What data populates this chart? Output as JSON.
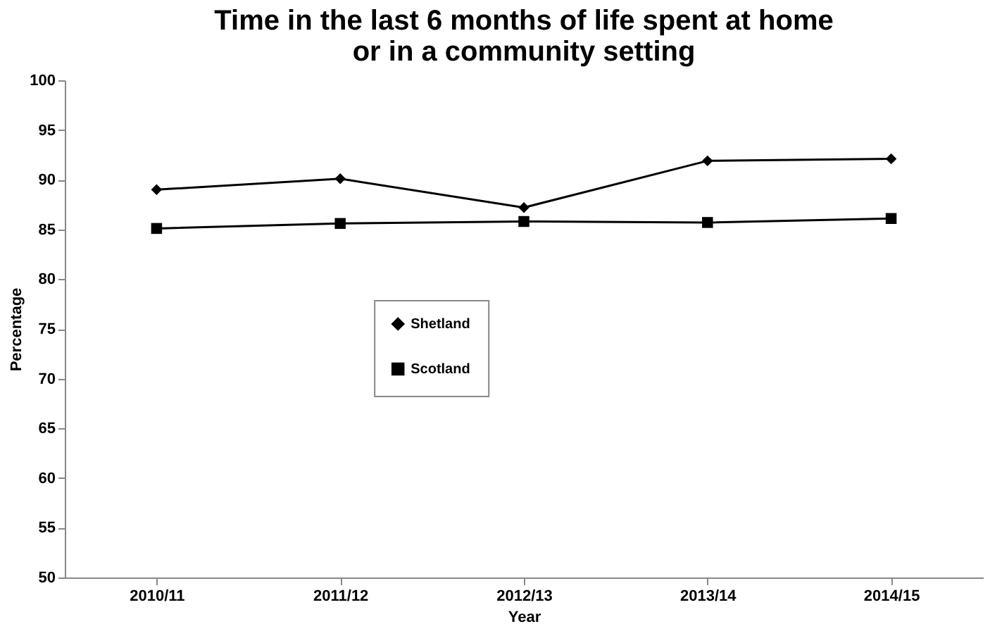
{
  "chart_data": {
    "type": "line",
    "title": [
      "Time in the last 6 months of life spent at home",
      "or in a community setting"
    ],
    "xlabel": "Year",
    "ylabel": "Percentage",
    "categories": [
      "2010/11",
      "2011/12",
      "2012/13",
      "2013/14",
      "2014/15"
    ],
    "series": [
      {
        "name": "Shetland",
        "color": "#000000",
        "marker": "diamond",
        "values": [
          89.0,
          90.1,
          87.2,
          91.9,
          92.1
        ]
      },
      {
        "name": "Scotland",
        "color": "#000000",
        "marker": "square",
        "values": [
          85.1,
          85.6,
          85.8,
          85.7,
          86.1
        ]
      }
    ],
    "ylim": [
      50,
      100
    ],
    "yticks": [
      50,
      55,
      60,
      65,
      70,
      75,
      80,
      85,
      90,
      95,
      100
    ],
    "grid": false,
    "legend": "center",
    "line_style": "solid"
  }
}
